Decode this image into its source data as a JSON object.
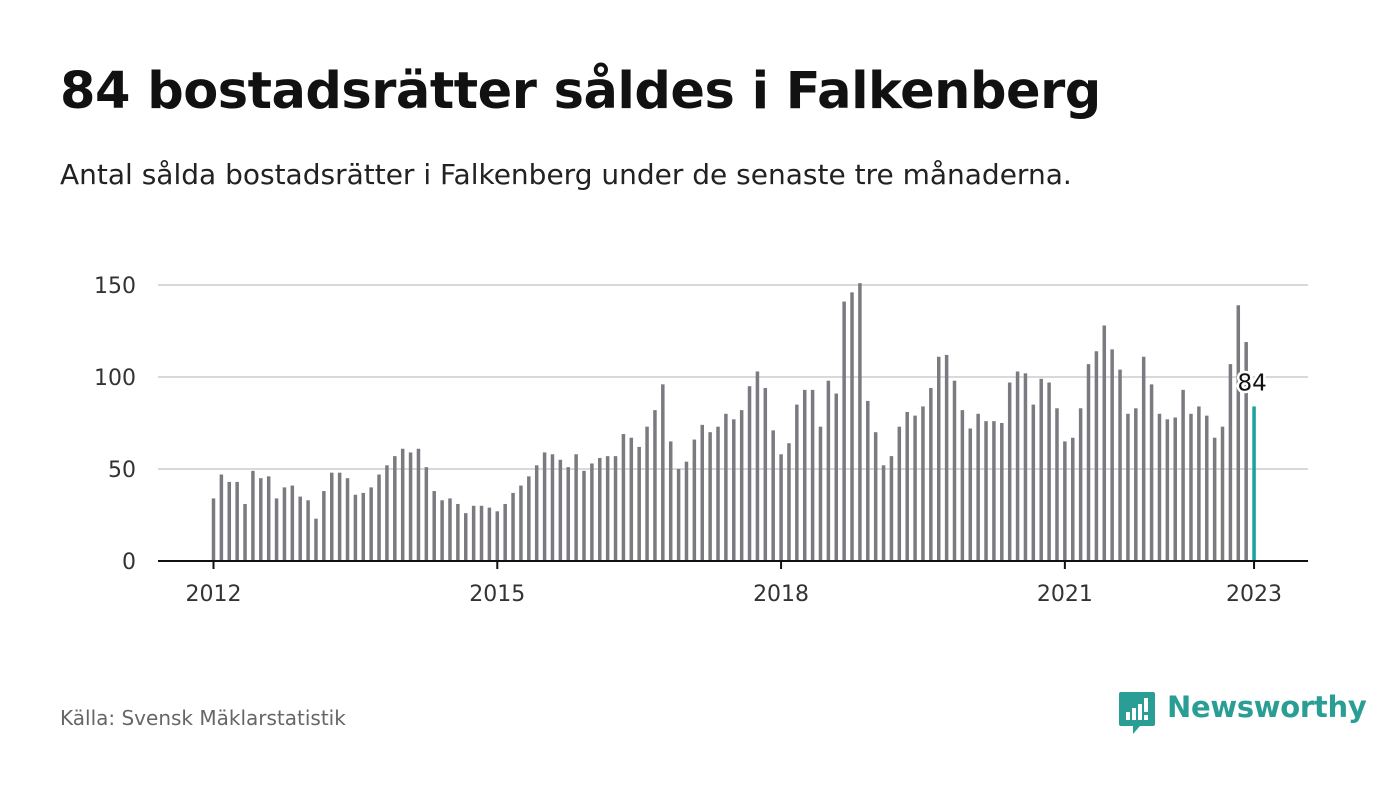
{
  "title": "84 bostadsrätter såldes i Falkenberg",
  "subtitle": "Antal sålda bostadsrätter i Falkenberg under de senaste tre månaderna.",
  "source": "Källa: Svensk Mäklarstatistik",
  "brand": {
    "name": "Newsworthy",
    "color": "#2a9d95",
    "icon": "bar-chart-speech-bubble-icon"
  },
  "colors": {
    "bar": "#7a7a80",
    "highlight": "#1aa39a",
    "grid": "#d9d9d9",
    "axis": "#111111"
  },
  "chart_data": {
    "type": "bar",
    "title": "84 bostadsrätter såldes i Falkenberg",
    "subtitle": "Antal sålda bostadsrätter i Falkenberg under de senaste tre månaderna.",
    "xlabel": "",
    "ylabel": "",
    "ylim": [
      0,
      150
    ],
    "yticks": [
      0,
      50,
      100,
      150
    ],
    "x_tick_labels": [
      "2012",
      "2015",
      "2018",
      "2021",
      "2023"
    ],
    "x_tick_index": [
      0,
      36,
      72,
      108,
      132
    ],
    "grid": true,
    "legend": "none",
    "highlight_label": "84",
    "categories_start": "2012-01",
    "categories_end": "2023-01",
    "categories_frequency": "monthly",
    "values": [
      34,
      47,
      43,
      43,
      31,
      49,
      45,
      46,
      34,
      40,
      41,
      35,
      33,
      23,
      38,
      48,
      48,
      45,
      36,
      37,
      40,
      47,
      52,
      57,
      61,
      59,
      61,
      51,
      38,
      33,
      34,
      31,
      26,
      30,
      30,
      29,
      27,
      31,
      37,
      41,
      46,
      52,
      59,
      58,
      55,
      51,
      58,
      49,
      53,
      56,
      57,
      57,
      69,
      67,
      62,
      73,
      82,
      96,
      65,
      50,
      54,
      66,
      74,
      70,
      73,
      80,
      77,
      82,
      95,
      103,
      94,
      71,
      58,
      64,
      85,
      93,
      93,
      73,
      98,
      91,
      141,
      146,
      151,
      87,
      70,
      52,
      57,
      73,
      81,
      79,
      84,
      94,
      111,
      112,
      98,
      82,
      72,
      80,
      76,
      76,
      75,
      97,
      103,
      102,
      85,
      99,
      97,
      83,
      65,
      67,
      83,
      107,
      114,
      128,
      115,
      104,
      80,
      83,
      111,
      96,
      80,
      77,
      78,
      93,
      80,
      84,
      79,
      67,
      73,
      107,
      139,
      119,
      84
    ]
  }
}
